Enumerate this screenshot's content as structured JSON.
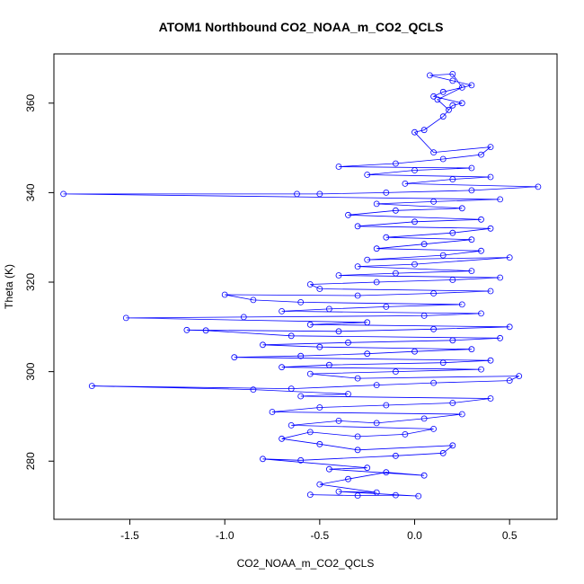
{
  "chart_data": {
    "type": "scatter",
    "title": "ATOM1 Northbound CO2_NOAA_m_CO2_QCLS",
    "xlabel": "CO2_NOAA_m_CO2_QCLS",
    "ylabel": "Theta (K)",
    "xlim": [
      -1.9,
      0.75
    ],
    "ylim": [
      267,
      371
    ],
    "xticks": [
      -1.5,
      -1.0,
      -0.5,
      0.0,
      0.5
    ],
    "xtick_labels": [
      "-1.5",
      "-1.0",
      "-0.5",
      "0.0",
      "0.5"
    ],
    "yticks": [
      280,
      300,
      320,
      340,
      360
    ],
    "ytick_labels": [
      "280",
      "300",
      "320",
      "340",
      "360"
    ],
    "marker": "open-circle",
    "connected": true,
    "grid": false,
    "legend": "none",
    "color": "#0000ff",
    "series": [
      {
        "points": [
          [
            -0.55,
            272.5
          ],
          [
            -0.3,
            272.3
          ],
          [
            -0.1,
            272.4
          ],
          [
            0.02,
            272.2
          ],
          [
            -0.4,
            273.2
          ],
          [
            -0.2,
            273.0
          ],
          [
            -0.5,
            274.8
          ],
          [
            -0.35,
            276.0
          ],
          [
            -0.15,
            277.5
          ],
          [
            0.05,
            276.8
          ],
          [
            -0.45,
            278.2
          ],
          [
            -0.25,
            278.5
          ],
          [
            -0.8,
            280.5
          ],
          [
            -0.6,
            280.2
          ],
          [
            -0.1,
            281.2
          ],
          [
            0.15,
            281.8
          ],
          [
            0.2,
            283.5
          ],
          [
            -0.3,
            282.5
          ],
          [
            -0.5,
            283.8
          ],
          [
            -0.7,
            285.0
          ],
          [
            -0.55,
            286.5
          ],
          [
            -0.3,
            285.5
          ],
          [
            -0.05,
            286.0
          ],
          [
            0.1,
            287.2
          ],
          [
            -0.65,
            288.0
          ],
          [
            -0.4,
            289.0
          ],
          [
            -0.2,
            288.5
          ],
          [
            0.05,
            289.5
          ],
          [
            0.25,
            290.5
          ],
          [
            -0.75,
            291.0
          ],
          [
            -0.5,
            292.0
          ],
          [
            -0.15,
            292.5
          ],
          [
            0.2,
            293.0
          ],
          [
            0.4,
            294.0
          ],
          [
            -0.6,
            294.5
          ],
          [
            -0.35,
            295.0
          ],
          [
            -0.85,
            296.0
          ],
          [
            -1.7,
            296.8
          ],
          [
            -0.65,
            296.2
          ],
          [
            -0.2,
            297.0
          ],
          [
            0.1,
            297.5
          ],
          [
            0.5,
            298.0
          ],
          [
            0.55,
            299.0
          ],
          [
            -0.3,
            298.5
          ],
          [
            -0.55,
            299.5
          ],
          [
            -0.1,
            300.0
          ],
          [
            0.35,
            300.5
          ],
          [
            -0.7,
            301.0
          ],
          [
            -0.45,
            301.5
          ],
          [
            0.15,
            302.0
          ],
          [
            0.4,
            302.5
          ],
          [
            -0.95,
            303.2
          ],
          [
            -0.6,
            303.5
          ],
          [
            -0.25,
            304.0
          ],
          [
            0.0,
            304.5
          ],
          [
            0.3,
            305.0
          ],
          [
            -0.5,
            305.5
          ],
          [
            -0.8,
            306.0
          ],
          [
            -0.35,
            306.5
          ],
          [
            0.2,
            307.0
          ],
          [
            0.45,
            307.5
          ],
          [
            -0.65,
            308.0
          ],
          [
            -1.1,
            309.2
          ],
          [
            -1.2,
            309.3
          ],
          [
            -0.4,
            309.0
          ],
          [
            0.1,
            309.5
          ],
          [
            0.5,
            310.0
          ],
          [
            -0.55,
            310.5
          ],
          [
            -0.25,
            311.0
          ],
          [
            -1.52,
            312.0
          ],
          [
            -0.9,
            312.2
          ],
          [
            0.05,
            312.5
          ],
          [
            0.35,
            313.0
          ],
          [
            -0.7,
            313.5
          ],
          [
            -0.45,
            314.0
          ],
          [
            -0.15,
            314.5
          ],
          [
            0.25,
            315.0
          ],
          [
            -0.6,
            315.5
          ],
          [
            -0.85,
            316.0
          ],
          [
            -1.0,
            317.2
          ],
          [
            -0.3,
            317.0
          ],
          [
            0.1,
            317.5
          ],
          [
            0.4,
            318.0
          ],
          [
            -0.5,
            318.5
          ],
          [
            -0.55,
            319.5
          ],
          [
            -0.2,
            320.0
          ],
          [
            0.2,
            320.5
          ],
          [
            0.45,
            321.0
          ],
          [
            -0.4,
            321.5
          ],
          [
            -0.1,
            322.0
          ],
          [
            0.3,
            322.5
          ],
          [
            -0.3,
            323.5
          ],
          [
            0.0,
            324.0
          ],
          [
            0.5,
            325.5
          ],
          [
            -0.25,
            325.0
          ],
          [
            0.15,
            326.0
          ],
          [
            0.35,
            327.0
          ],
          [
            -0.2,
            327.5
          ],
          [
            0.05,
            328.5
          ],
          [
            0.3,
            329.5
          ],
          [
            -0.15,
            330.0
          ],
          [
            0.2,
            331.0
          ],
          [
            0.4,
            332.0
          ],
          [
            -0.3,
            332.5
          ],
          [
            0.0,
            333.5
          ],
          [
            0.35,
            334.0
          ],
          [
            -0.35,
            335.0
          ],
          [
            -0.1,
            336.0
          ],
          [
            0.25,
            336.5
          ],
          [
            -0.2,
            337.5
          ],
          [
            0.1,
            338.0
          ],
          [
            0.45,
            338.5
          ],
          [
            -1.85,
            339.7
          ],
          [
            -0.62,
            339.7
          ],
          [
            -0.5,
            339.7
          ],
          [
            -0.15,
            340.0
          ],
          [
            0.3,
            340.5
          ],
          [
            0.65,
            341.3
          ],
          [
            -0.05,
            342.0
          ],
          [
            0.2,
            343.0
          ],
          [
            0.4,
            343.5
          ],
          [
            -0.25,
            344.0
          ],
          [
            0.0,
            345.0
          ],
          [
            0.3,
            345.5
          ],
          [
            -0.4,
            345.8
          ],
          [
            -0.1,
            346.5
          ],
          [
            0.15,
            347.5
          ],
          [
            0.35,
            348.5
          ],
          [
            0.4,
            350.2
          ],
          [
            0.1,
            349.0
          ],
          [
            0.0,
            353.5
          ],
          [
            0.05,
            354.0
          ],
          [
            0.15,
            357.0
          ],
          [
            0.2,
            359.5
          ],
          [
            0.25,
            360.0
          ],
          [
            0.1,
            361.5
          ],
          [
            0.15,
            362.5
          ],
          [
            0.3,
            364.0
          ],
          [
            0.2,
            365.0
          ],
          [
            0.08,
            366.2
          ],
          [
            0.2,
            366.5
          ],
          [
            0.25,
            363.5
          ],
          [
            0.12,
            360.8
          ],
          [
            0.18,
            358.5
          ]
        ]
      }
    ]
  }
}
